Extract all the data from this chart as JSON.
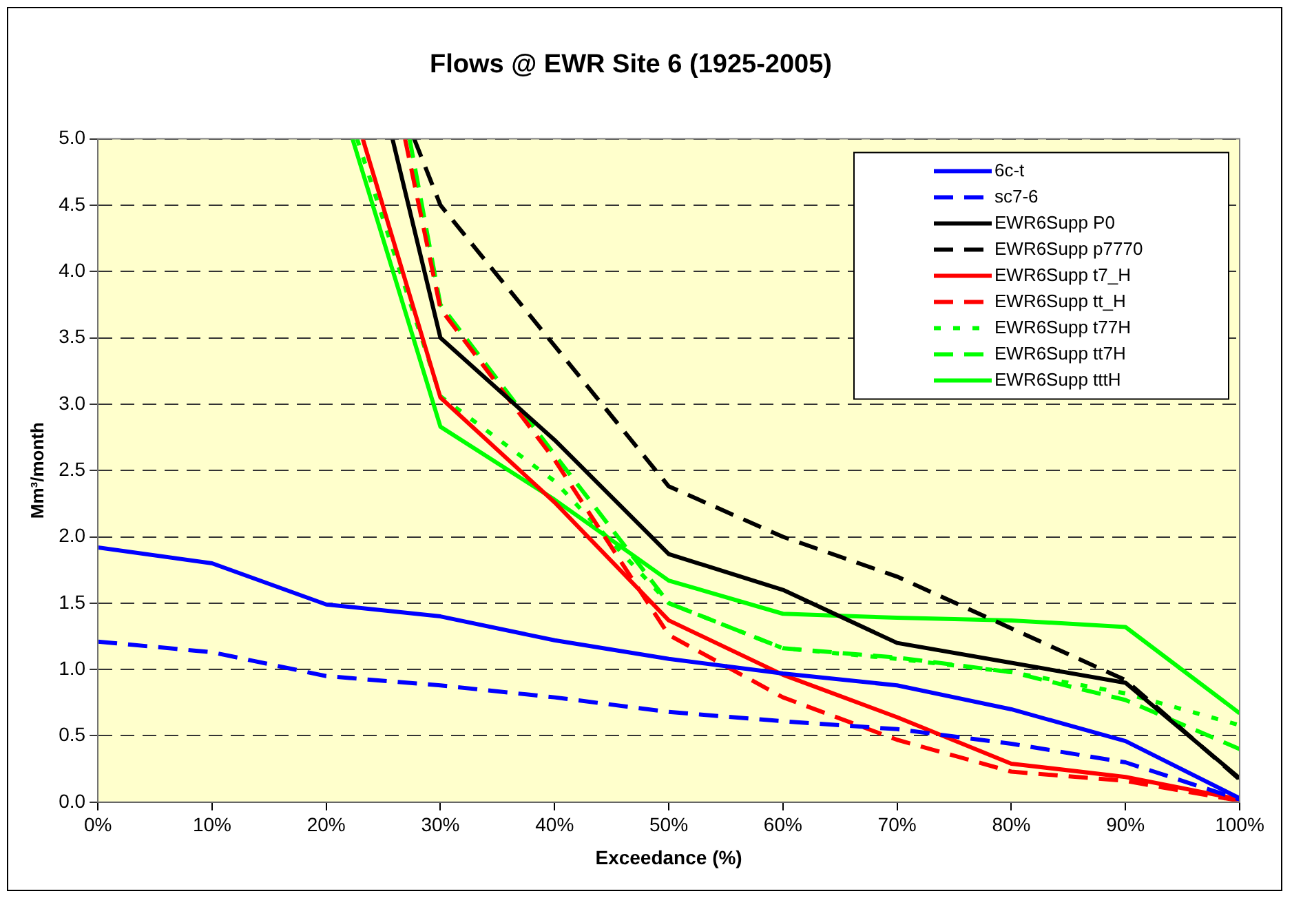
{
  "chart_data": {
    "type": "line",
    "title": "Flows @ EWR Site 6 (1925-2005)",
    "xlabel": "Exceedance (%)",
    "ylabel": "Mm³/month",
    "xlim": [
      0,
      100
    ],
    "xticks": [
      {
        "value": 0,
        "label": "0%"
      },
      {
        "value": 10,
        "label": "10%"
      },
      {
        "value": 20,
        "label": "20%"
      },
      {
        "value": 30,
        "label": "30%"
      },
      {
        "value": 40,
        "label": "40%"
      },
      {
        "value": 50,
        "label": "50%"
      },
      {
        "value": 60,
        "label": "60%"
      },
      {
        "value": 70,
        "label": "70%"
      },
      {
        "value": 80,
        "label": "80%"
      },
      {
        "value": 90,
        "label": "90%"
      },
      {
        "value": 100,
        "label": "100%"
      }
    ],
    "ylim": [
      0,
      5
    ],
    "yticks": [
      {
        "value": 0,
        "label": "0.0"
      },
      {
        "value": 0.5,
        "label": "0.5"
      },
      {
        "value": 1,
        "label": "1.0"
      },
      {
        "value": 1.5,
        "label": "1.5"
      },
      {
        "value": 2,
        "label": "2.0"
      },
      {
        "value": 2.5,
        "label": "2.5"
      },
      {
        "value": 3,
        "label": "3.0"
      },
      {
        "value": 3.5,
        "label": "3.5"
      },
      {
        "value": 4,
        "label": "4.0"
      },
      {
        "value": 4.5,
        "label": "4.5"
      },
      {
        "value": 5,
        "label": "5.0"
      }
    ],
    "grid": "y",
    "legend": "top right",
    "marker": "none",
    "series": [
      {
        "name": "6c-t",
        "color": "#0000ff",
        "line_style": "solid",
        "x": [
          0,
          10,
          20,
          30,
          40,
          50,
          60,
          70,
          80,
          90,
          100
        ],
        "values": [
          1.92,
          1.8,
          1.49,
          1.4,
          1.22,
          1.08,
          0.97,
          0.88,
          0.7,
          0.46,
          0.03
        ]
      },
      {
        "name": "sc7-6",
        "color": "#0000ff",
        "line_style": "dashed",
        "x": [
          0,
          10,
          20,
          30,
          40,
          50,
          60,
          70,
          80,
          90,
          100
        ],
        "values": [
          1.21,
          1.13,
          0.95,
          0.88,
          0.79,
          0.68,
          0.61,
          0.55,
          0.44,
          0.3,
          0.02
        ]
      },
      {
        "name": "EWR6Supp P0",
        "color": "#000000",
        "line_style": "solid",
        "x": [
          25.8,
          30,
          40,
          50,
          60,
          70,
          80,
          90,
          100
        ],
        "values": [
          5,
          3.5,
          2.73,
          1.87,
          1.6,
          1.2,
          1.05,
          0.9,
          0.18
        ]
      },
      {
        "name": "EWR6Supp p7770",
        "color": "#000000",
        "line_style": "dashed",
        "x": [
          27.7,
          30,
          40,
          50,
          60,
          70,
          80,
          90,
          100
        ],
        "values": [
          5,
          4.5,
          3.44,
          2.38,
          2,
          1.7,
          1.31,
          0.92,
          0.17
        ]
      },
      {
        "name": "EWR6Supp t7_H",
        "color": "#ff0000",
        "line_style": "solid",
        "x": [
          23.2,
          30,
          40,
          50,
          60,
          70,
          80,
          90,
          100
        ],
        "values": [
          5,
          3.05,
          2.26,
          1.37,
          0.96,
          0.64,
          0.29,
          0.19,
          0.02
        ]
      },
      {
        "name": "EWR6Supp tt_H",
        "color": "#ff0000",
        "line_style": "dashed",
        "x": [
          26.9,
          30,
          40,
          50,
          60,
          70,
          80,
          90,
          100
        ],
        "values": [
          5,
          3.72,
          2.58,
          1.26,
          0.79,
          0.47,
          0.23,
          0.16,
          0.01
        ]
      },
      {
        "name": "EWR6Supp t77H",
        "color": "#00ff00",
        "line_style": "dotted",
        "x": [
          22.7,
          30,
          40,
          50,
          60,
          70,
          80,
          90,
          100
        ],
        "values": [
          5,
          3.06,
          2.42,
          1.5,
          1.16,
          1.08,
          0.98,
          0.82,
          0.58
        ]
      },
      {
        "name": "EWR6Supp tt7H",
        "color": "#00ff00",
        "line_style": "dashed",
        "x": [
          27.3,
          30,
          40,
          50,
          60,
          70,
          80,
          90,
          100
        ],
        "values": [
          5,
          3.75,
          2.62,
          1.5,
          1.16,
          1.09,
          0.98,
          0.77,
          0.4
        ]
      },
      {
        "name": "EWR6Supp tttH",
        "color": "#00ff00",
        "line_style": "solid",
        "x": [
          22.3,
          30,
          40,
          50,
          60,
          70,
          80,
          90,
          100
        ],
        "values": [
          5,
          2.83,
          2.28,
          1.67,
          1.42,
          1.39,
          1.37,
          1.32,
          0.67
        ]
      }
    ]
  }
}
